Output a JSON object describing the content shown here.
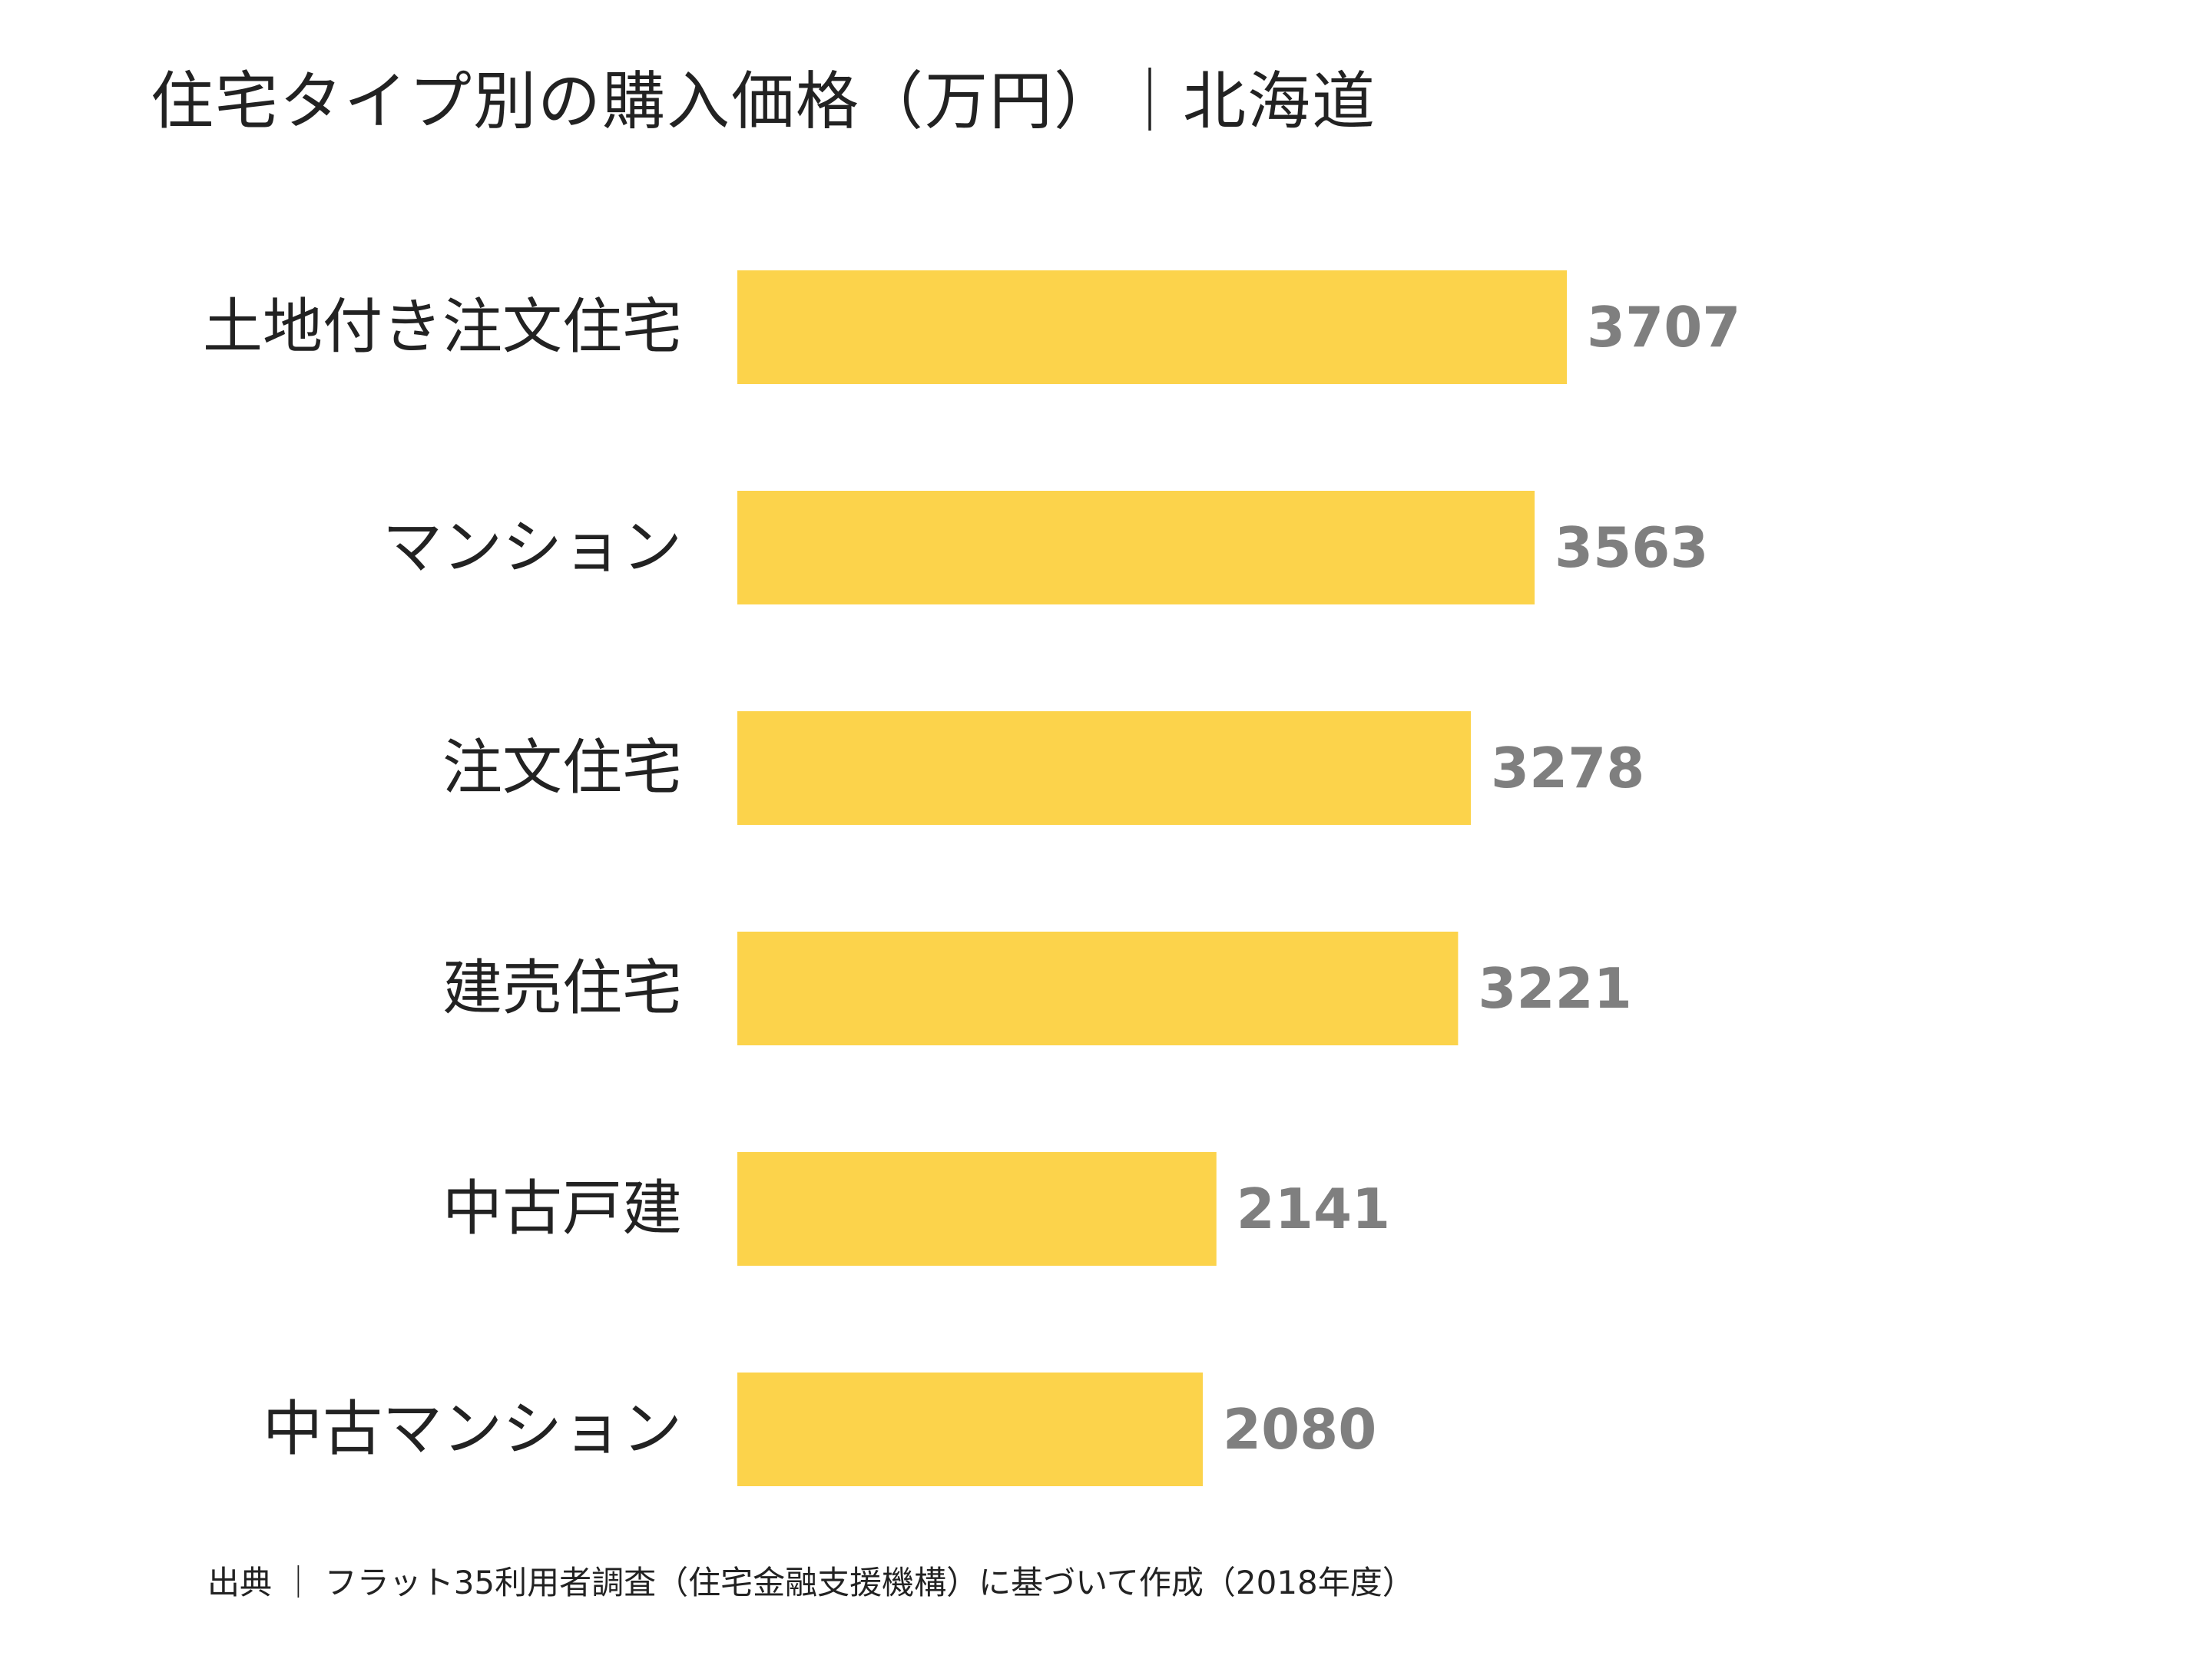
{
  "chart_data": {
    "type": "bar",
    "orientation": "horizontal",
    "title": "住宅タイプ別の購入価格（万円）｜北海道",
    "categories": [
      "土地付き注文住宅",
      "マンション",
      "注文住宅",
      "建売住宅",
      "中古戸建",
      "中古マンション"
    ],
    "values": [
      3707,
      3563,
      3278,
      3221,
      2141,
      2080
    ],
    "xlim": [
      0,
      3707
    ],
    "grid": false,
    "legend": "none",
    "colors": {
      "bar": "#FCD34B",
      "value_label": "#7F7F7F",
      "text": "#222222"
    }
  },
  "source": "出典 ｜ フラット35利用者調査（住宅金融支援機構）に基づいて作成（2018年度）"
}
